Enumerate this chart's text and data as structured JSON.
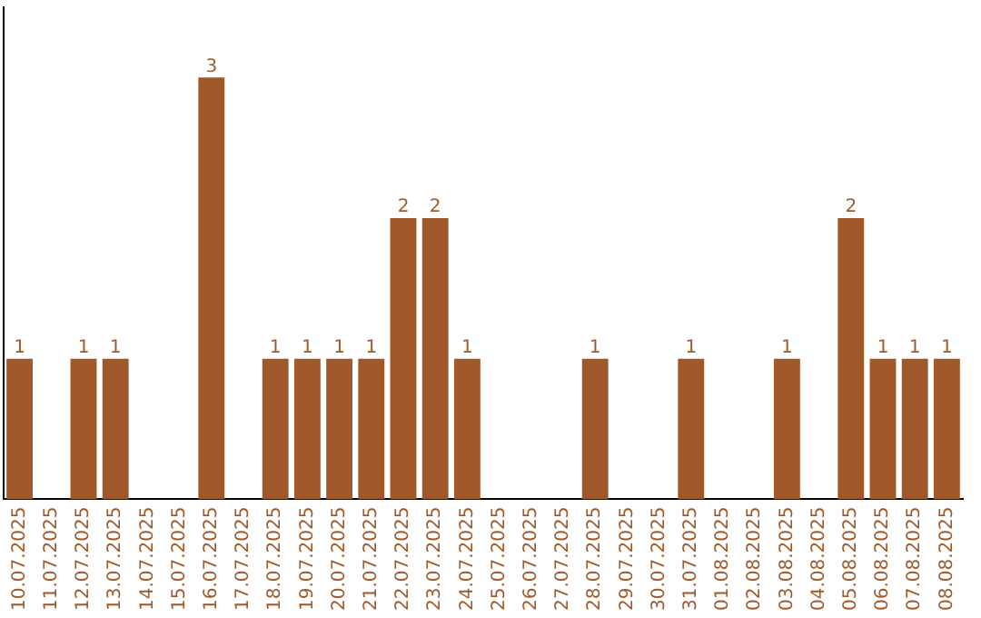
{
  "chart_data": {
    "type": "bar",
    "categories": [
      "10.07.2025",
      "11.07.2025",
      "12.07.2025",
      "13.07.2025",
      "14.07.2025",
      "15.07.2025",
      "16.07.2025",
      "17.07.2025",
      "18.07.2025",
      "19.07.2025",
      "20.07.2025",
      "21.07.2025",
      "22.07.2025",
      "23.07.2025",
      "24.07.2025",
      "25.07.2025",
      "26.07.2025",
      "27.07.2025",
      "28.07.2025",
      "29.07.2025",
      "30.07.2025",
      "31.07.2025",
      "01.08.2025",
      "02.08.2025",
      "03.08.2025",
      "04.08.2025",
      "05.08.2025",
      "06.08.2025",
      "07.08.2025",
      "08.08.2025"
    ],
    "values": [
      1,
      0,
      1,
      1,
      0,
      0,
      3,
      0,
      1,
      1,
      1,
      1,
      2,
      2,
      1,
      0,
      0,
      0,
      1,
      0,
      0,
      1,
      0,
      0,
      1,
      0,
      2,
      1,
      1,
      1
    ],
    "value_labels": [
      "1",
      null,
      "1",
      "1",
      null,
      null,
      "3",
      null,
      "1",
      "1",
      "1",
      "1",
      "2",
      "2",
      "1",
      null,
      null,
      null,
      "1",
      null,
      null,
      "1",
      null,
      null,
      "1",
      null,
      "2",
      "1",
      "1",
      "1"
    ],
    "color": "#a0592a",
    "grid": false,
    "legend": false,
    "tick_labels": "x"
  }
}
